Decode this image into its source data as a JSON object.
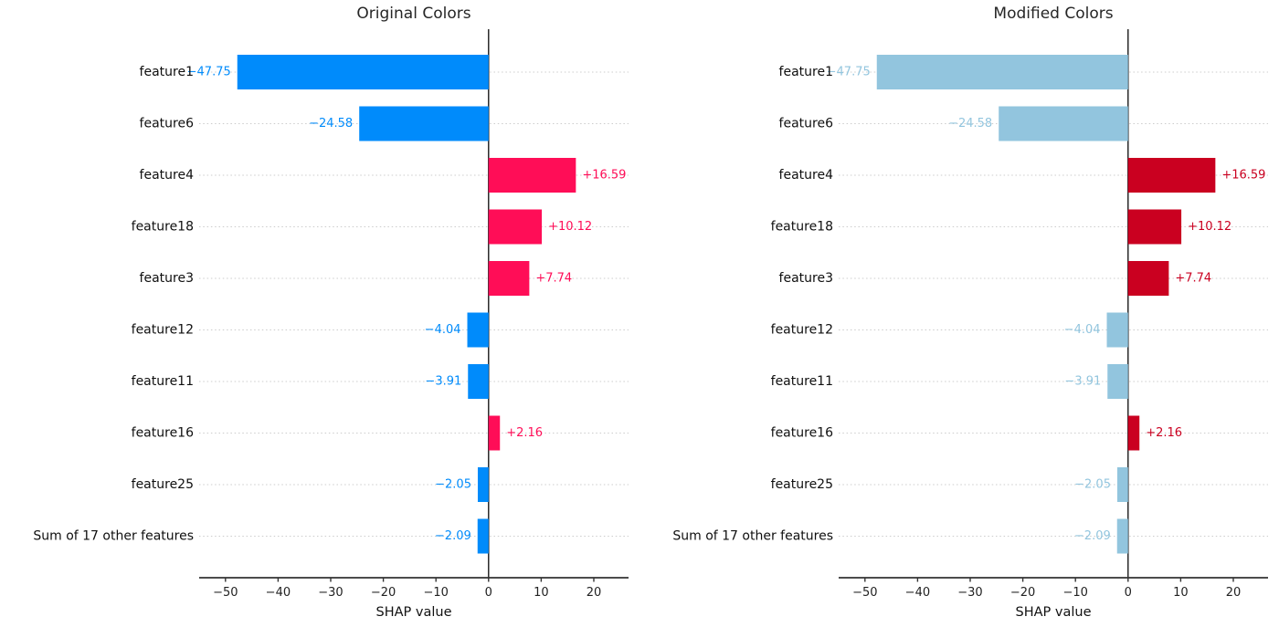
{
  "figure": {
    "background_color": "#ffffff",
    "layout": "two horizontal bar charts side by side"
  },
  "styles": {
    "grid_color": "#cccccc",
    "grid_style": "dotted",
    "zero_line_color": "#1a1a1a",
    "axis_color": "#333333",
    "feature_label_color": "#0f0f0f",
    "tick_label_color": "#222222"
  },
  "chart_data": [
    {
      "type": "bar",
      "orientation": "horizontal",
      "title": "Original Colors",
      "xlabel": "SHAP value",
      "categories": [
        "feature1",
        "feature6",
        "feature4",
        "feature18",
        "feature3",
        "feature12",
        "feature11",
        "feature16",
        "feature25",
        "Sum of 17 other features"
      ],
      "values": [
        -47.75,
        -24.58,
        16.59,
        10.12,
        7.74,
        -4.04,
        -3.91,
        2.16,
        -2.05,
        -2.09
      ],
      "value_labels": [
        "−47.75",
        "−24.58",
        "+16.59",
        "+10.12",
        "+7.74",
        "−4.04",
        "−3.91",
        "+2.16",
        "−2.05",
        "−2.09"
      ],
      "positive_color": "#ff0d57",
      "negative_color": "#008bfb",
      "xlim": [
        -55,
        26.6
      ],
      "xticks": [
        -50,
        -40,
        -30,
        -20,
        -10,
        0,
        10,
        20
      ],
      "xtick_labels": [
        "−50",
        "−40",
        "−30",
        "−20",
        "−10",
        "0",
        "10",
        "20"
      ],
      "grid": "horizontal dotted per-row",
      "zero_line": true,
      "legend": "none"
    },
    {
      "type": "bar",
      "orientation": "horizontal",
      "title": "Modified Colors",
      "xlabel": "SHAP value",
      "categories": [
        "feature1",
        "feature6",
        "feature4",
        "feature18",
        "feature3",
        "feature12",
        "feature11",
        "feature16",
        "feature25",
        "Sum of 17 other features"
      ],
      "values": [
        -47.75,
        -24.58,
        16.59,
        10.12,
        7.74,
        -4.04,
        -3.91,
        2.16,
        -2.05,
        -2.09
      ],
      "value_labels": [
        "−47.75",
        "−24.58",
        "+16.59",
        "+10.12",
        "+7.74",
        "−4.04",
        "−3.91",
        "+2.16",
        "−2.05",
        "−2.09"
      ],
      "positive_color": "#ca0020",
      "negative_color": "#92c5de",
      "xlim": [
        -55,
        26.6
      ],
      "xticks": [
        -50,
        -40,
        -30,
        -20,
        -10,
        0,
        10,
        20
      ],
      "xtick_labels": [
        "−50",
        "−40",
        "−30",
        "−20",
        "−10",
        "0",
        "10",
        "20"
      ],
      "grid": "horizontal dotted per-row",
      "zero_line": true,
      "legend": "none"
    }
  ]
}
